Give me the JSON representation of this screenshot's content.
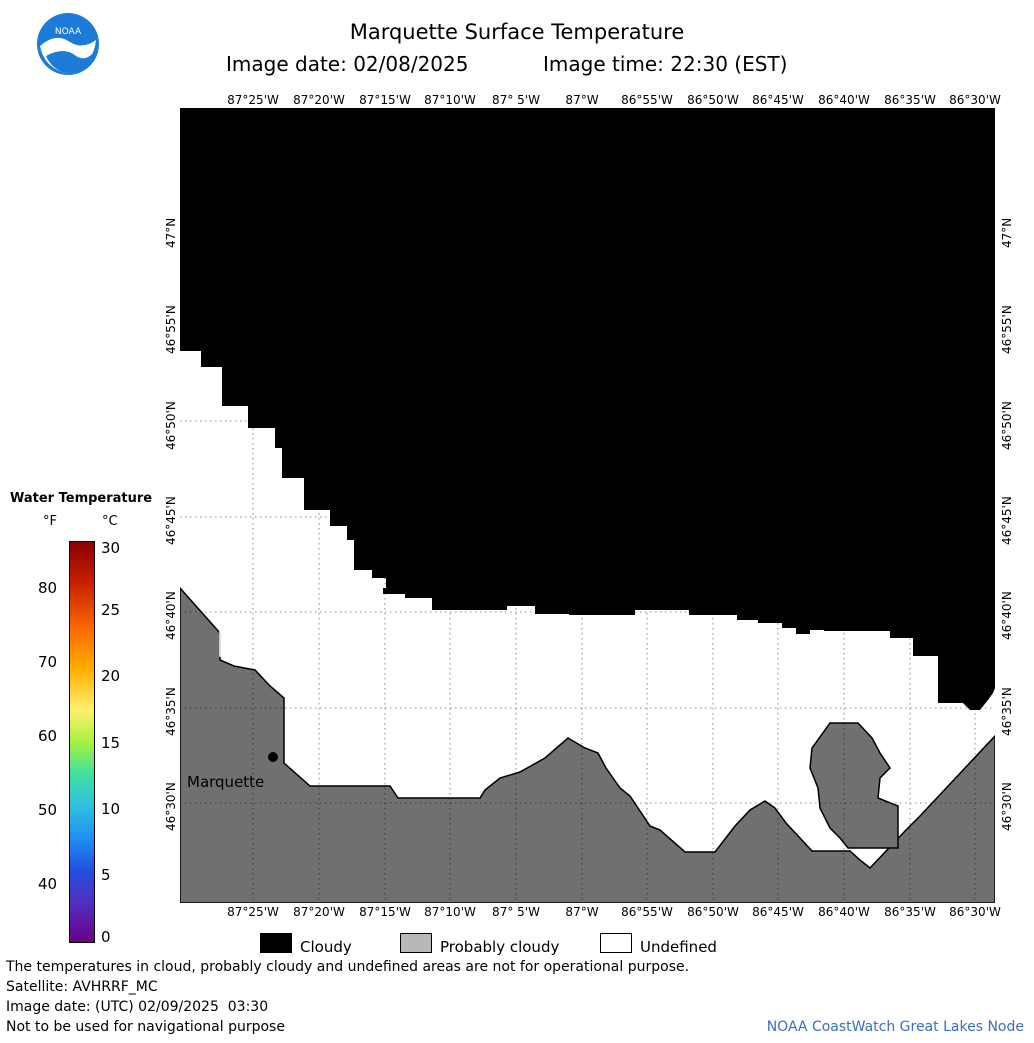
{
  "header": {
    "title": "Marquette Surface Temperature",
    "image_date": "Image date: 02/08/2025",
    "image_time": "Image time: 22:30 (EST)"
  },
  "map": {
    "lon_labels": [
      "87°25'W",
      "87°20'W",
      "87°15'W",
      "87°10'W",
      "87° 5'W",
      "87°W",
      "86°55'W",
      "86°50'W",
      "86°45'W",
      "86°40'W",
      "86°35'W",
      "86°30'W"
    ],
    "lat_labels": [
      "47°N",
      "46°55'N",
      "46°50'N",
      "46°45'N",
      "46°40'N",
      "46°35'N",
      "46°30'N"
    ],
    "city_label": "Marquette",
    "colors": {
      "cloudy": "#000000",
      "probably_cloudy": "#707070",
      "undefined": "#ffffff"
    }
  },
  "colorbar": {
    "title": "Water Temperature",
    "unit_f": "°F",
    "unit_c": "°C",
    "f_ticks": [
      "80",
      "70",
      "60",
      "50",
      "40"
    ],
    "c_ticks": [
      "30",
      "25",
      "20",
      "15",
      "10",
      "5",
      "0"
    ]
  },
  "legend": {
    "cloudy": "Cloudy",
    "probably_cloudy": "Probably cloudy",
    "undefined": "Undefined"
  },
  "footer": {
    "note": "The temperatures in cloud, probably cloudy and undefined areas are not for operational purpose.",
    "satellite": "Satellite: AVHRRF_MC",
    "utc_date": "Image date: (UTC) 02/09/2025  03:30",
    "nav": "Not to be used for navigational purpose",
    "credit": "NOAA CoastWatch Great Lakes Node"
  }
}
